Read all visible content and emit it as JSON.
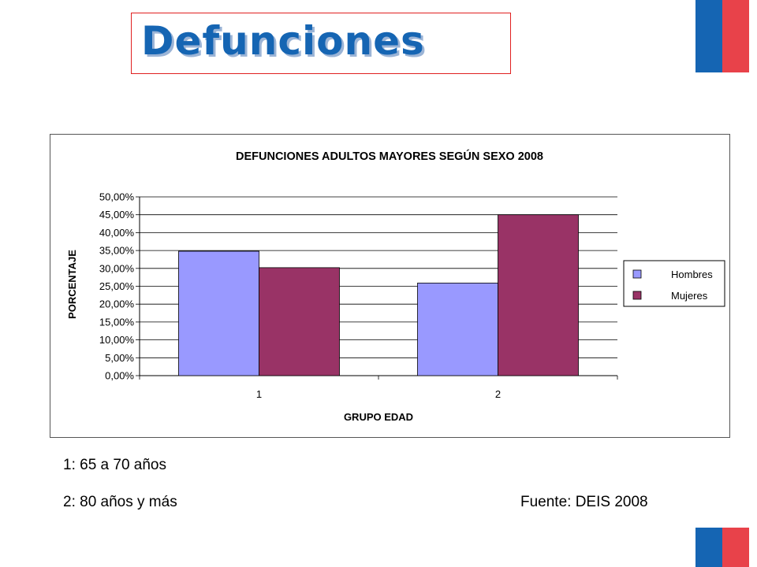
{
  "slide": {
    "title": "Defunciones",
    "notes": [
      "1: 65 a 70 años",
      "2: 80 años y más"
    ],
    "source": "Fuente: DEIS 2008"
  },
  "colors": {
    "flag_blue": "#1565b3",
    "flag_red": "#e8424a",
    "title_text": "#1565b3",
    "title_border": "#e02020",
    "hombres": "#9999ff",
    "mujeres": "#993366"
  },
  "chart_data": {
    "type": "bar",
    "title": "DEFUNCIONES ADULTOS MAYORES SEGÚN SEXO  2008",
    "xlabel": "GRUPO EDAD",
    "ylabel": "PORCENTAJE",
    "categories": [
      "1",
      "2"
    ],
    "series": [
      {
        "name": "Hombres",
        "values": [
          34.8,
          25.9
        ],
        "color": "#9999ff"
      },
      {
        "name": "Mujeres",
        "values": [
          30.2,
          45.0
        ],
        "color": "#993366"
      }
    ],
    "ylim": [
      0,
      50
    ],
    "yticks": [
      "0,00%",
      "5,00%",
      "10,00%",
      "15,00%",
      "20,00%",
      "25,00%",
      "30,00%",
      "35,00%",
      "40,00%",
      "45,00%",
      "50,00%"
    ],
    "grid": true,
    "legend": "right"
  }
}
